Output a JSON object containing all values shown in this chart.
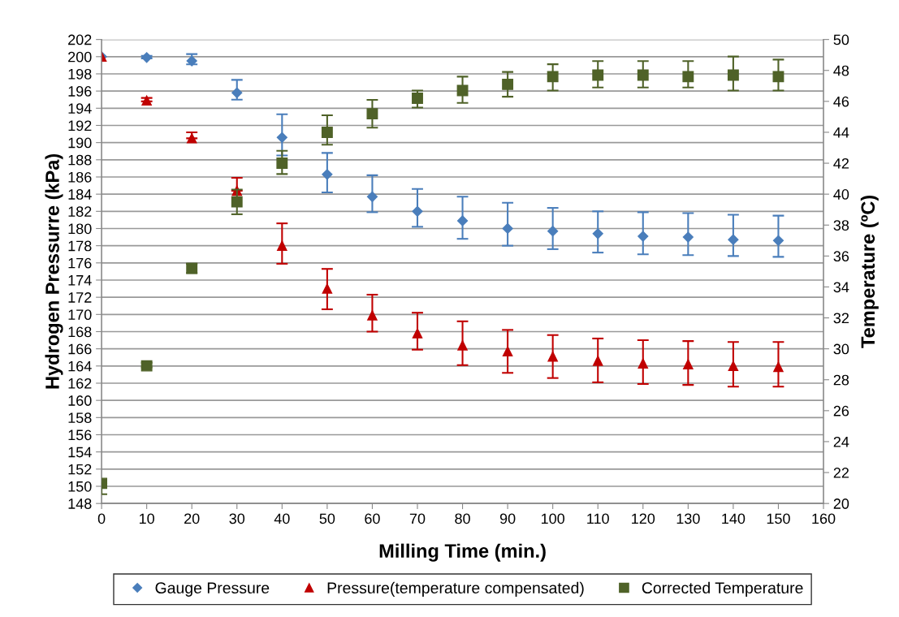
{
  "chart_data": {
    "type": "scatter",
    "xlabel": "Milling Time (min.)",
    "ylabel": "Hydrogen Pressurre (kPa)",
    "y2label": "Temperature (ºC)",
    "x": [
      0,
      10,
      20,
      30,
      40,
      50,
      60,
      70,
      80,
      90,
      100,
      110,
      120,
      130,
      140,
      150
    ],
    "series": [
      {
        "name": "Gauge Pressure",
        "color": "#4a7ebb",
        "marker": "diamond",
        "values": [
          200,
          199.9,
          199.5,
          195.8,
          190.6,
          186.3,
          183.7,
          182.0,
          180.9,
          180.0,
          179.7,
          179.4,
          179.1,
          179.0,
          178.7,
          178.6
        ],
        "errors": [
          null,
          [
            199.8,
            200.1
          ],
          [
            199.1,
            200.3
          ],
          [
            195.0,
            197.3
          ],
          [
            188.5,
            193.3
          ],
          [
            184.2,
            188.8
          ],
          [
            181.9,
            186.2
          ],
          [
            180.2,
            184.6
          ],
          [
            178.8,
            183.7
          ],
          [
            178.0,
            183.0
          ],
          [
            177.6,
            182.4
          ],
          [
            177.2,
            182.0
          ],
          [
            177.0,
            181.9
          ],
          [
            176.9,
            181.8
          ],
          [
            176.8,
            181.6
          ],
          [
            176.7,
            181.5
          ]
        ]
      },
      {
        "name": "Pressure(temperature compensated)",
        "color": "#c00000",
        "marker": "triangle",
        "values": [
          200,
          194.9,
          190.5,
          184.4,
          178.0,
          173.0,
          169.9,
          167.8,
          166.4,
          165.7,
          165.1,
          164.6,
          164.3,
          164.2,
          164.0,
          163.9
        ],
        "errors": [
          null,
          [
            194.8,
            195.2
          ],
          [
            190.5,
            191.2
          ],
          [
            184.4,
            185.9
          ],
          [
            175.9,
            180.6
          ],
          [
            170.6,
            175.3
          ],
          [
            168.0,
            172.3
          ],
          [
            165.9,
            170.2
          ],
          [
            164.1,
            169.2
          ],
          [
            163.2,
            168.2
          ],
          [
            162.6,
            167.6
          ],
          [
            162.1,
            167.2
          ],
          [
            161.9,
            167.0
          ],
          [
            161.8,
            166.9
          ],
          [
            161.6,
            166.8
          ],
          [
            161.6,
            166.8
          ]
        ]
      },
      {
        "name": "Corrected Temperature",
        "color": "#4f6228",
        "marker": "square",
        "axis": "y2",
        "values": [
          21.3,
          28.9,
          35.2,
          39.5,
          42.0,
          44.0,
          45.2,
          46.2,
          46.7,
          47.1,
          47.6,
          47.7,
          47.7,
          47.6,
          47.7,
          47.6
        ],
        "errors": [
          [
            20.6,
            21.3
          ],
          [
            28.8,
            29.1
          ],
          [
            34.9,
            35.5
          ],
          [
            38.7,
            40.3
          ],
          [
            41.3,
            42.8
          ],
          [
            43.2,
            45.1
          ],
          [
            44.3,
            46.1
          ],
          [
            45.6,
            46.7
          ],
          [
            45.9,
            47.6
          ],
          [
            46.3,
            47.9
          ],
          [
            46.7,
            48.4
          ],
          [
            46.9,
            48.6
          ],
          [
            46.9,
            48.6
          ],
          [
            46.9,
            48.6
          ],
          [
            46.7,
            48.9
          ],
          [
            46.7,
            48.7
          ]
        ]
      }
    ],
    "xlim": [
      0,
      160
    ],
    "xticks": [
      0,
      10,
      20,
      30,
      40,
      50,
      60,
      70,
      80,
      90,
      100,
      110,
      120,
      130,
      140,
      150,
      160
    ],
    "ylim": [
      148,
      202
    ],
    "yticks": [
      148,
      150,
      152,
      154,
      156,
      158,
      160,
      162,
      164,
      166,
      168,
      170,
      172,
      174,
      176,
      178,
      180,
      182,
      184,
      186,
      188,
      190,
      192,
      194,
      196,
      198,
      200,
      202
    ],
    "y2lim": [
      20,
      50
    ],
    "y2ticks": [
      20,
      22,
      24,
      26,
      28,
      30,
      32,
      34,
      36,
      38,
      40,
      42,
      44,
      46,
      48,
      50
    ],
    "grid": "y",
    "legend": "bottom"
  }
}
